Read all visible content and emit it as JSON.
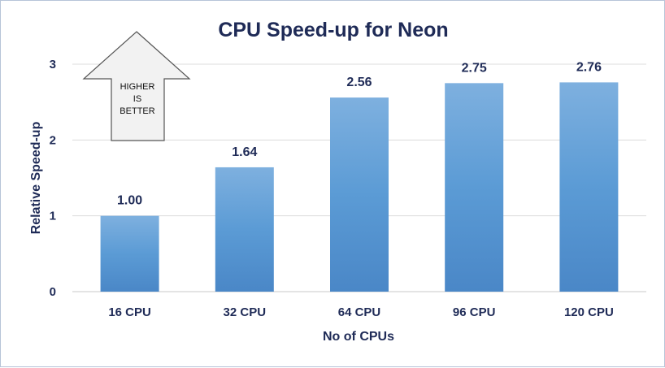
{
  "chart_data": {
    "type": "bar",
    "title": "CPU Speed-up for Neon",
    "xlabel": "No of CPUs",
    "ylabel": "Relative Speed-up",
    "categories": [
      "16 CPU",
      "32 CPU",
      "64 CPU",
      "96 CPU",
      "120 CPU"
    ],
    "values": [
      1.0,
      1.64,
      2.56,
      2.75,
      2.76
    ],
    "data_labels": [
      "1.00",
      "1.64",
      "2.56",
      "2.75",
      "2.76"
    ],
    "ylim": [
      0,
      3
    ],
    "yticks": [
      0,
      1,
      2,
      3
    ],
    "grid": true,
    "legend": "none",
    "bar_color": "#5b9bd5",
    "bar_color_top": "#7eb0df",
    "bar_color_bottom": "#4a87c7",
    "text_color": "#1f2b57",
    "annotation": {
      "shape": "up-arrow",
      "lines": [
        "HIGHER",
        "IS",
        "BETTER"
      ]
    }
  }
}
